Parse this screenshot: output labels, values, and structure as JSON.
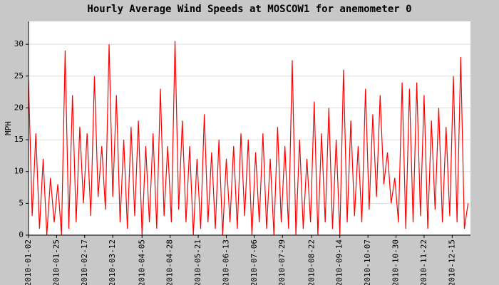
{
  "chart_data": {
    "type": "line",
    "title": "Hourly Average Wind Speeds at MOSCOW1 for anemometer 0",
    "ylabel": "MPH",
    "color": "#ff0000",
    "grid": true,
    "xlim": [
      "2010-01-02",
      "2010-12-30"
    ],
    "xticks": [
      "2010-01-02",
      "2010-01-25",
      "2010-02-17",
      "2010-03-12",
      "2010-04-05",
      "2010-04-28",
      "2010-05-21",
      "2010-06-13",
      "2010-07-06",
      "2010-07-29",
      "2010-08-22",
      "2010-09-14",
      "2010-10-07",
      "2010-10-30",
      "2010-11-22",
      "2010-12-15"
    ],
    "ylim": [
      0,
      33.6
    ],
    "yticks": [
      0,
      5,
      10,
      15,
      20,
      25,
      30
    ],
    "x": [
      "2010-01-02",
      "2010-01-05",
      "2010-01-08",
      "2010-01-11",
      "2010-01-14",
      "2010-01-17",
      "2010-01-20",
      "2010-01-23",
      "2010-01-26",
      "2010-01-29",
      "2010-02-01",
      "2010-02-04",
      "2010-02-07",
      "2010-02-10",
      "2010-02-13",
      "2010-02-16",
      "2010-02-19",
      "2010-02-22",
      "2010-02-25",
      "2010-02-28",
      "2010-03-03",
      "2010-03-06",
      "2010-03-09",
      "2010-03-12",
      "2010-03-15",
      "2010-03-18",
      "2010-03-21",
      "2010-03-24",
      "2010-03-27",
      "2010-03-30",
      "2010-04-02",
      "2010-04-05",
      "2010-04-08",
      "2010-04-11",
      "2010-04-14",
      "2010-04-17",
      "2010-04-20",
      "2010-04-23",
      "2010-04-26",
      "2010-04-29",
      "2010-05-02",
      "2010-05-05",
      "2010-05-08",
      "2010-05-11",
      "2010-05-14",
      "2010-05-17",
      "2010-05-20",
      "2010-05-23",
      "2010-05-26",
      "2010-05-29",
      "2010-06-01",
      "2010-06-04",
      "2010-06-07",
      "2010-06-10",
      "2010-06-13",
      "2010-06-16",
      "2010-06-19",
      "2010-06-22",
      "2010-06-25",
      "2010-06-28",
      "2010-07-01",
      "2010-07-04",
      "2010-07-07",
      "2010-07-10",
      "2010-07-13",
      "2010-07-16",
      "2010-07-19",
      "2010-07-22",
      "2010-07-25",
      "2010-07-28",
      "2010-07-31",
      "2010-08-03",
      "2010-08-06",
      "2010-08-09",
      "2010-08-12",
      "2010-08-15",
      "2010-08-18",
      "2010-08-21",
      "2010-08-24",
      "2010-08-27",
      "2010-08-30",
      "2010-09-02",
      "2010-09-05",
      "2010-09-08",
      "2010-09-11",
      "2010-09-14",
      "2010-09-17",
      "2010-09-20",
      "2010-09-23",
      "2010-09-26",
      "2010-09-29",
      "2010-10-02",
      "2010-10-05",
      "2010-10-08",
      "2010-10-11",
      "2010-10-14",
      "2010-10-17",
      "2010-10-20",
      "2010-10-23",
      "2010-10-26",
      "2010-10-29",
      "2010-11-01",
      "2010-11-04",
      "2010-11-07",
      "2010-11-10",
      "2010-11-13",
      "2010-11-16",
      "2010-11-19",
      "2010-11-22",
      "2010-11-25",
      "2010-11-28",
      "2010-12-01",
      "2010-12-04",
      "2010-12-07",
      "2010-12-10",
      "2010-12-13",
      "2010-12-16",
      "2010-12-19",
      "2010-12-22",
      "2010-12-25",
      "2010-12-28"
    ],
    "values": [
      24.5,
      3,
      16,
      1,
      12,
      0,
      9,
      2,
      8,
      0,
      29,
      1,
      22,
      2,
      17,
      5,
      16,
      3,
      25,
      6,
      14,
      4,
      30,
      6,
      22,
      2,
      15,
      1,
      17,
      3,
      18,
      0,
      14,
      2,
      16,
      1,
      23,
      3,
      14,
      2,
      30.5,
      4,
      18,
      2,
      14,
      0,
      12,
      1,
      19,
      2,
      13,
      1,
      15,
      0,
      12,
      2,
      14,
      1,
      16,
      3,
      15,
      0,
      13,
      2,
      16,
      1,
      12,
      0,
      17,
      2,
      14,
      1,
      27.5,
      0,
      15,
      1,
      12,
      2,
      21,
      0,
      16,
      2,
      20,
      1,
      15,
      0,
      26,
      2,
      18,
      3,
      14,
      2,
      23,
      4,
      19,
      6,
      22,
      8,
      13,
      5,
      9,
      2,
      24,
      1,
      23,
      2,
      24,
      3,
      22,
      1,
      18,
      4,
      20,
      2,
      17,
      3,
      25,
      2,
      28,
      1,
      5
    ]
  }
}
